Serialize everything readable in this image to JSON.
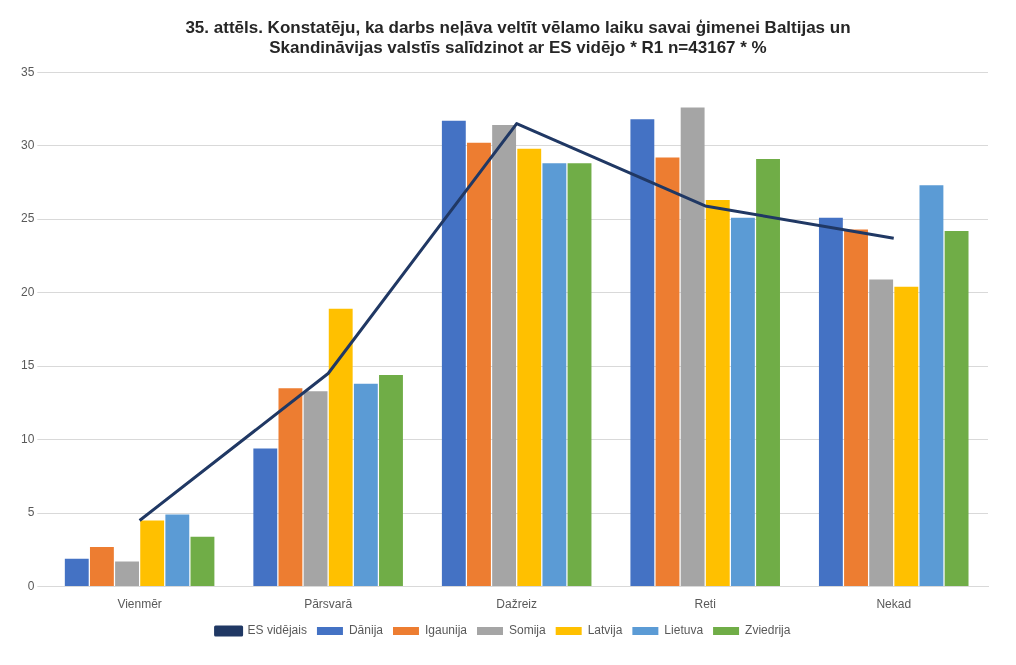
{
  "chart_data": {
    "type": "bar",
    "title": "35. attēls. Konstatēju, ka darbs neļāva veltīt vēlamo laiku savai ģimenei Baltijas un Skandināvijas valstīs salīdzinot ar ES vidējo * R1 n=43167 * %",
    "categories": [
      "Vienmēr",
      "Pārsvarā",
      "Dažreiz",
      "Reti",
      "Nekad"
    ],
    "series": [
      {
        "name": "Dānija",
        "color": "#4472c4",
        "values": [
          1.9,
          9.4,
          31.7,
          31.8,
          25.1
        ]
      },
      {
        "name": "Igaunija",
        "color": "#ed7d31",
        "values": [
          2.7,
          13.5,
          30.2,
          29.2,
          24.3
        ]
      },
      {
        "name": "Somija",
        "color": "#a5a5a5",
        "values": [
          1.7,
          13.3,
          31.4,
          32.6,
          20.9
        ]
      },
      {
        "name": "Latvija",
        "color": "#ffc000",
        "values": [
          4.5,
          18.9,
          29.8,
          26.3,
          20.4
        ]
      },
      {
        "name": "Lietuva",
        "color": "#5b9bd5",
        "values": [
          4.9,
          13.8,
          28.8,
          25.1,
          27.3
        ]
      },
      {
        "name": "Zviedrija",
        "color": "#70ad47",
        "values": [
          3.4,
          14.4,
          28.8,
          29.1,
          24.2
        ]
      },
      {
        "name": "ES vidējais",
        "type": "line",
        "color": "#203864",
        "values": [
          4.5,
          14.5,
          31.5,
          25.9,
          23.7
        ]
      }
    ],
    "ylim": [
      0,
      35
    ],
    "yticks": [
      0,
      5,
      10,
      15,
      20,
      25,
      30,
      35
    ],
    "grid": "y",
    "legend": "bottom",
    "marker": "none"
  }
}
